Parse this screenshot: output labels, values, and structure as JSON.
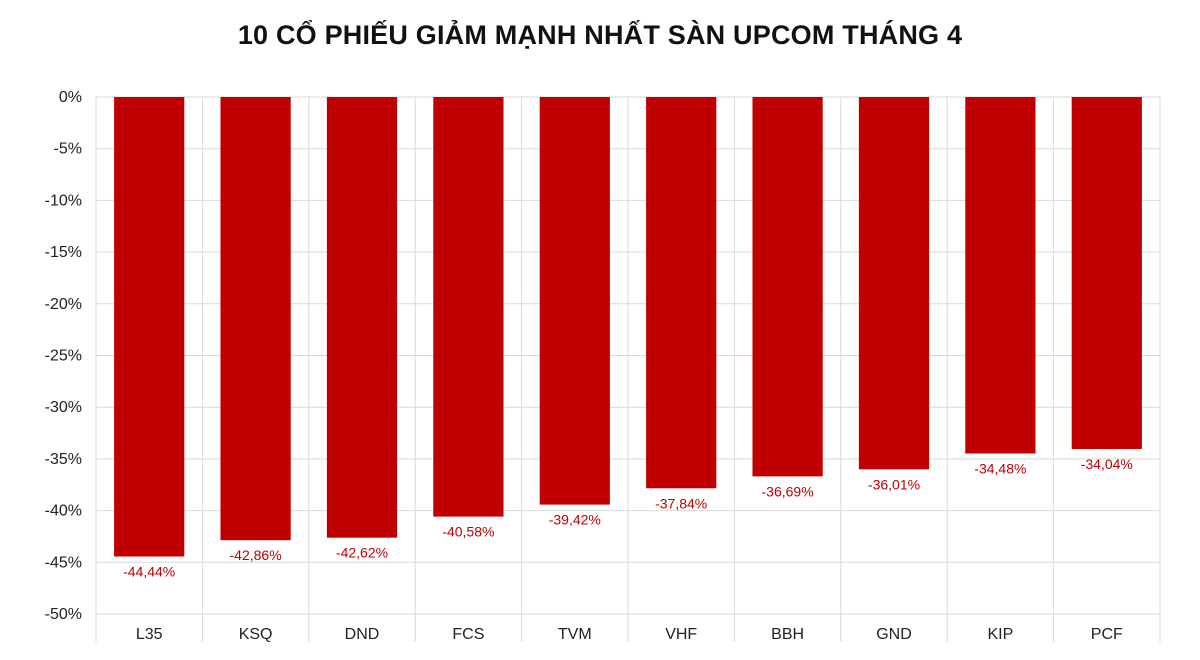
{
  "chart_data": {
    "type": "bar",
    "title": "10 CỔ PHIẾU GIẢM MẠNH NHẤT SÀN UPCOM THÁNG 4",
    "xlabel": "",
    "ylabel": "",
    "categories": [
      "L35",
      "KSQ",
      "DND",
      "FCS",
      "TVM",
      "VHF",
      "BBH",
      "GND",
      "KIP",
      "PCF"
    ],
    "values": [
      -44.44,
      -42.86,
      -42.62,
      -40.58,
      -39.42,
      -37.84,
      -36.69,
      -36.01,
      -34.48,
      -34.04
    ],
    "data_labels": [
      "-44,44%",
      "-42,86%",
      "-42,62%",
      "-40,58%",
      "-39,42%",
      "-37,84%",
      "-36,69%",
      "-36,01%",
      "-34,48%",
      "-34,04%"
    ],
    "y_ticks": [
      0,
      -5,
      -10,
      -15,
      -20,
      -25,
      -30,
      -35,
      -40,
      -45,
      -50
    ],
    "y_tick_labels": [
      "0%",
      "-5%",
      "-10%",
      "-15%",
      "-20%",
      "-25%",
      "-30%",
      "-35%",
      "-40%",
      "-45%",
      "-50%"
    ],
    "ylim": [
      -50,
      0
    ],
    "grid": true,
    "legend": false,
    "colors": {
      "bar": "#c00000",
      "label": "#c00000",
      "grid": "#d9d9d9"
    }
  }
}
